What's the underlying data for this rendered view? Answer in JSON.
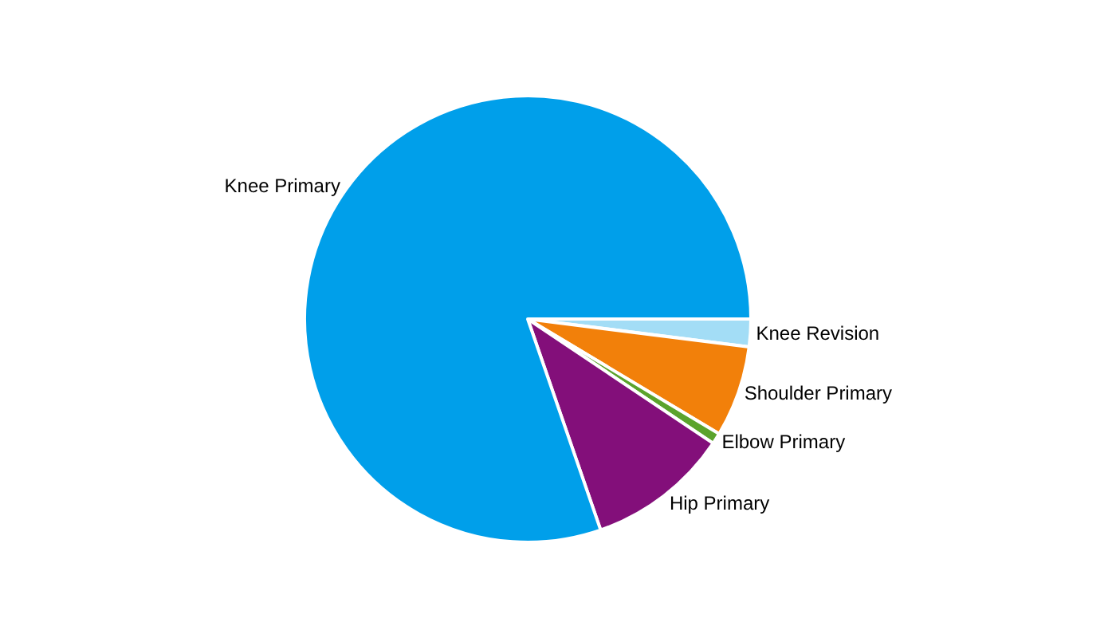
{
  "chart_data": {
    "type": "pie",
    "categories": [
      "Knee Revision",
      "Shoulder Primary",
      "Elbow Primary",
      "Hip Primary",
      "Knee Primary"
    ],
    "values": [
      2.0,
      6.6,
      0.8,
      10.3,
      80.3
    ],
    "colors": [
      "#a3ddf6",
      "#f2800a",
      "#5ba32c",
      "#830f7a",
      "#009fea"
    ],
    "legend": false
  }
}
